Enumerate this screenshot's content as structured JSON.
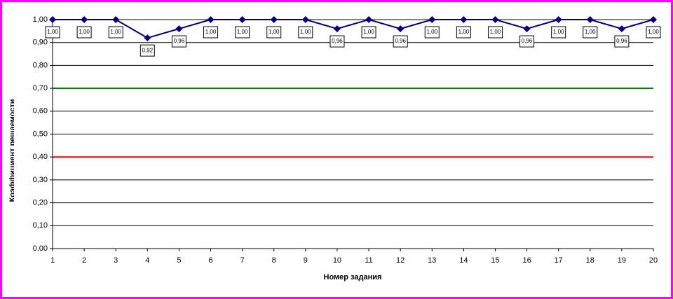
{
  "chart_data": {
    "type": "line",
    "x_label": "Номер задания",
    "y_label": "Коэффициент решаемости",
    "x": [
      1,
      2,
      3,
      4,
      5,
      6,
      7,
      8,
      9,
      10,
      11,
      12,
      13,
      14,
      15,
      16,
      17,
      18,
      19,
      20
    ],
    "series": [
      {
        "name": null,
        "color": "#000080",
        "values": [
          1,
          1,
          1,
          0.92,
          0.96,
          1,
          1,
          1,
          1,
          0.96,
          1,
          0.96,
          1,
          1,
          1,
          0.96,
          1,
          1,
          0.96,
          1
        ],
        "value_labels": [
          "1,00",
          "1,00",
          "1,00",
          "0,92",
          "0,96",
          "1,00",
          "1,00",
          "1,00",
          "1,00",
          "0,96",
          "1,00",
          "0,96",
          "1,00",
          "1,00",
          "1,00",
          "0,96",
          "1,00",
          "1,00",
          "0,96",
          "1,00"
        ]
      }
    ],
    "xlim": [
      1,
      20
    ],
    "xticks": [
      1,
      2,
      3,
      4,
      5,
      6,
      7,
      8,
      9,
      10,
      11,
      12,
      13,
      14,
      15,
      16,
      17,
      18,
      19,
      20
    ],
    "ylim": [
      0,
      1
    ],
    "yticks": [
      {
        "value": 0,
        "label": "0,00"
      },
      {
        "value": 0.1,
        "label": "0,10"
      },
      {
        "value": 0.2,
        "label": "0,20"
      },
      {
        "value": 0.3,
        "label": "0,30"
      },
      {
        "value": 0.4,
        "label": "0,40"
      },
      {
        "value": 0.5,
        "label": "0,50"
      },
      {
        "value": 0.6,
        "label": "0,60"
      },
      {
        "value": 0.7,
        "label": "0,70"
      },
      {
        "value": 0.8,
        "label": "0,80"
      },
      {
        "value": 0.9,
        "label": "0,90"
      },
      {
        "value": 1,
        "label": "1,00"
      }
    ],
    "reference_lines": [
      {
        "value": 0.7,
        "color": "#008000"
      },
      {
        "value": 0.4,
        "color": "#ff0000"
      }
    ],
    "grid": true
  }
}
